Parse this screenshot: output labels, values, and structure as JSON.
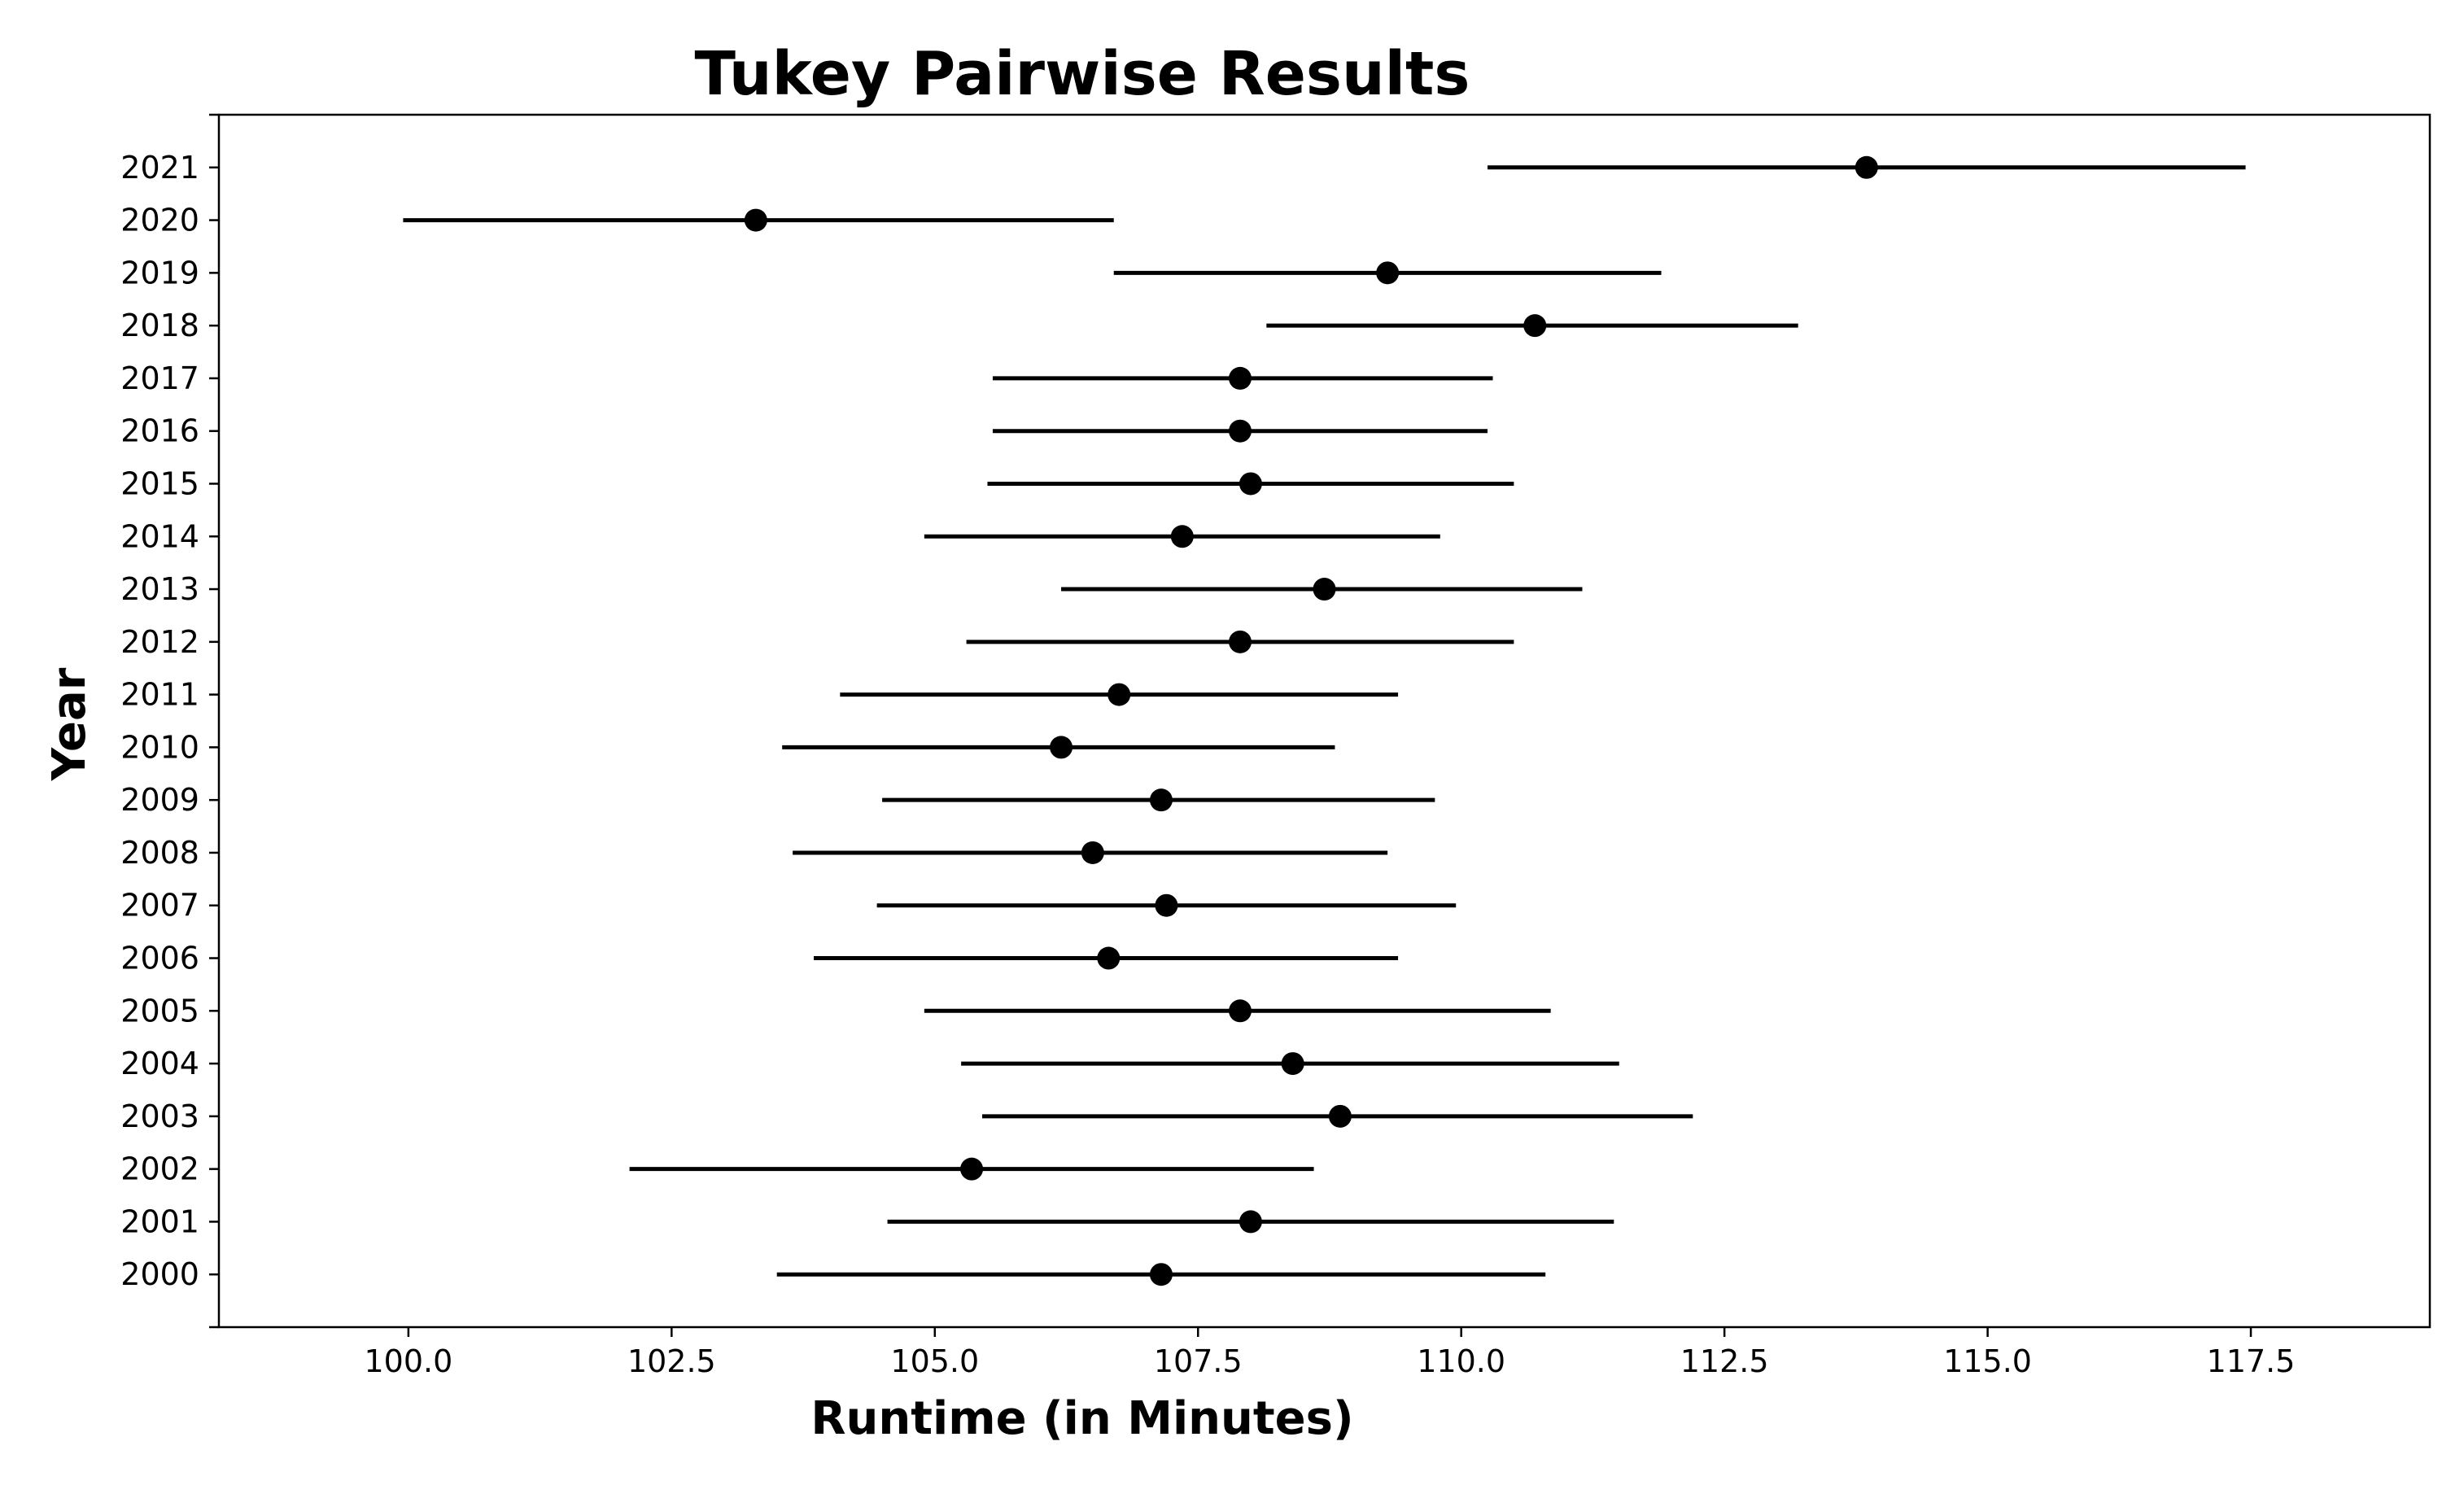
{
  "chart_data": {
    "type": "scatter",
    "title": "Tukey Pairwise Results",
    "xlabel": "Runtime (in Minutes)",
    "ylabel": "Year",
    "xlim": [
      98.2,
      119.2
    ],
    "xticks": [
      "100.0",
      "102.5",
      "105.0",
      "107.5",
      "110.0",
      "112.5",
      "115.0",
      "117.5"
    ],
    "grid": false,
    "marker_color": "#000000",
    "groups": [
      {
        "year": "2000",
        "mean": 107.15,
        "lower": 103.5,
        "upper": 110.8
      },
      {
        "year": "2001",
        "mean": 108.0,
        "lower": 104.55,
        "upper": 111.45
      },
      {
        "year": "2002",
        "mean": 105.35,
        "lower": 102.1,
        "upper": 108.6
      },
      {
        "year": "2003",
        "mean": 108.85,
        "lower": 105.45,
        "upper": 112.2
      },
      {
        "year": "2004",
        "mean": 108.4,
        "lower": 105.25,
        "upper": 111.5
      },
      {
        "year": "2005",
        "mean": 107.9,
        "lower": 104.9,
        "upper": 110.85
      },
      {
        "year": "2006",
        "mean": 106.65,
        "lower": 103.85,
        "upper": 109.4
      },
      {
        "year": "2007",
        "mean": 107.2,
        "lower": 104.45,
        "upper": 109.95
      },
      {
        "year": "2008",
        "mean": 106.5,
        "lower": 103.65,
        "upper": 109.3
      },
      {
        "year": "2009",
        "mean": 107.15,
        "lower": 104.5,
        "upper": 109.75
      },
      {
        "year": "2010",
        "mean": 106.2,
        "lower": 103.55,
        "upper": 108.8
      },
      {
        "year": "2011",
        "mean": 106.75,
        "lower": 104.1,
        "upper": 109.4
      },
      {
        "year": "2012",
        "mean": 107.9,
        "lower": 105.3,
        "upper": 110.5
      },
      {
        "year": "2013",
        "mean": 108.7,
        "lower": 106.2,
        "upper": 111.15
      },
      {
        "year": "2014",
        "mean": 107.35,
        "lower": 104.9,
        "upper": 109.8
      },
      {
        "year": "2015",
        "mean": 108.0,
        "lower": 105.5,
        "upper": 110.5
      },
      {
        "year": "2016",
        "mean": 107.9,
        "lower": 105.55,
        "upper": 110.25
      },
      {
        "year": "2017",
        "mean": 107.9,
        "lower": 105.55,
        "upper": 110.3
      },
      {
        "year": "2018",
        "mean": 110.7,
        "lower": 108.15,
        "upper": 113.2
      },
      {
        "year": "2019",
        "mean": 109.3,
        "lower": 106.7,
        "upper": 111.9
      },
      {
        "year": "2020",
        "mean": 103.3,
        "lower": 99.95,
        "upper": 106.7
      },
      {
        "year": "2021",
        "mean": 113.85,
        "lower": 110.25,
        "upper": 117.45
      }
    ]
  }
}
